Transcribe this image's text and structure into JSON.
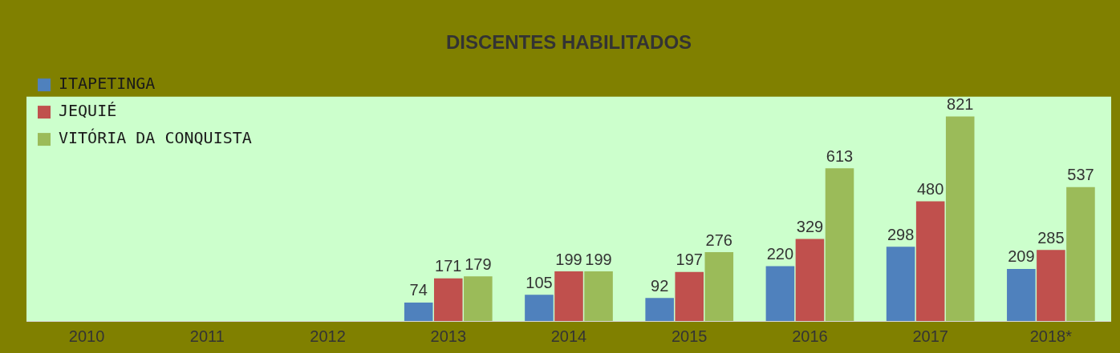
{
  "chart_data": {
    "type": "bar",
    "title": "DISCENTES HABILITADOS",
    "categories": [
      "2010",
      "2011",
      "2012",
      "2013",
      "2014",
      "2015",
      "2016",
      "2017",
      "2018*"
    ],
    "series": [
      {
        "name": "ITAPETINGA",
        "color": "#4f81bd",
        "values": [
          null,
          null,
          null,
          74,
          105,
          92,
          220,
          298,
          209
        ]
      },
      {
        "name": "JEQUIÉ",
        "color": "#c0504d",
        "values": [
          null,
          null,
          null,
          171,
          199,
          197,
          329,
          480,
          285
        ]
      },
      {
        "name": "VITÓRIA DA CONQUISTA",
        "color": "#9bbb59",
        "values": [
          null,
          null,
          null,
          179,
          199,
          276,
          613,
          821,
          537
        ]
      }
    ],
    "data_labels": true,
    "legend": "left",
    "grid": false
  }
}
